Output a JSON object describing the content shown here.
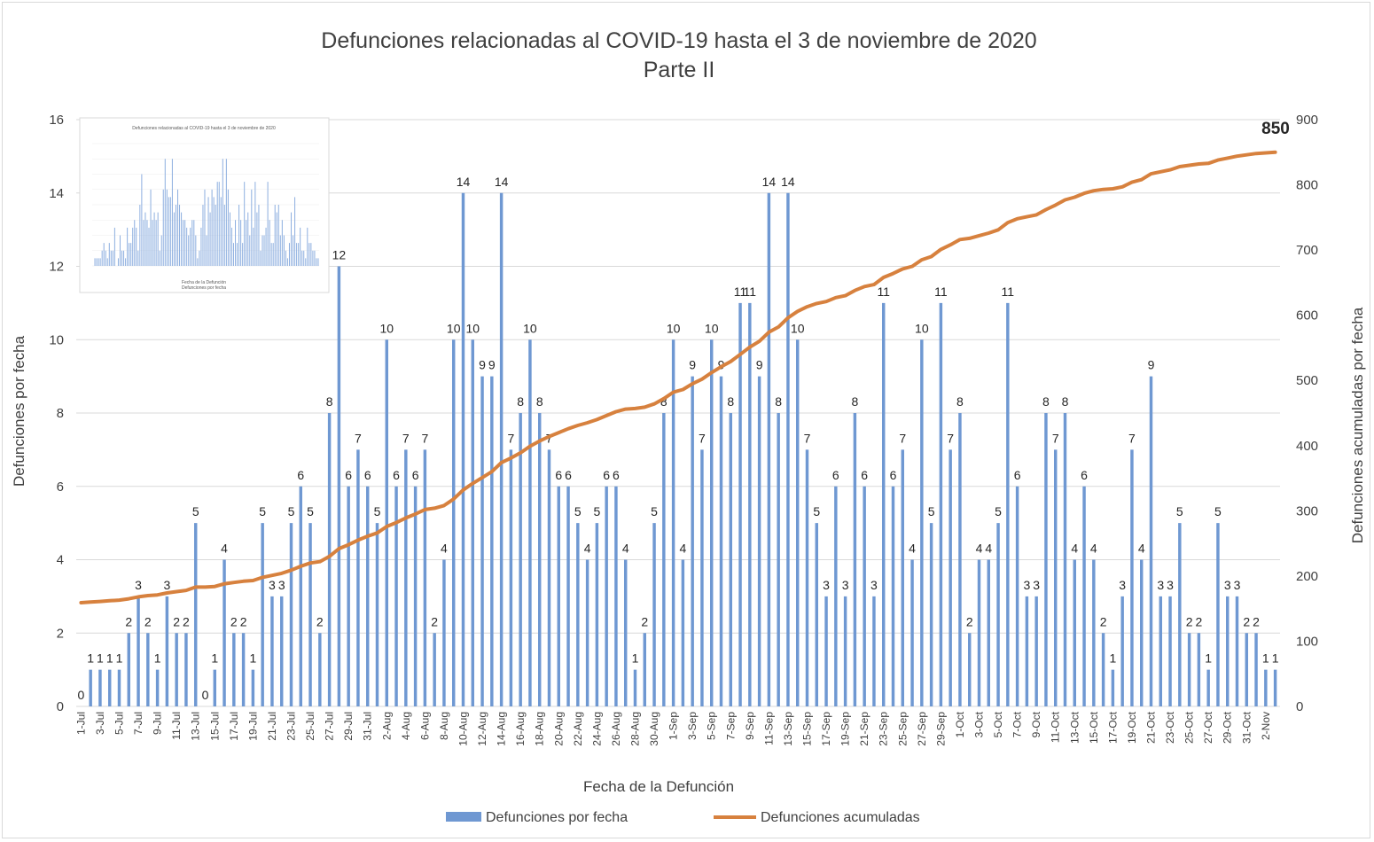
{
  "chart_data": {
    "type": "bar+line",
    "title": "Defunciones relacionadas al COVID-19 hasta el 3 de noviembre de 2020",
    "subtitle": "Parte II",
    "xlabel": "Fecha de la Defunción",
    "ylabel": "Defunciones por fecha",
    "y2label": "Defunciones acumuladas por fecha",
    "ylim": [
      0,
      16
    ],
    "y2lim": [
      0,
      900
    ],
    "yticks": [
      "0",
      "2",
      "4",
      "6",
      "8",
      "10",
      "12",
      "14",
      "16"
    ],
    "y2ticks": [
      "0",
      "100",
      "200",
      "300",
      "400",
      "500",
      "600",
      "700",
      "800",
      "900"
    ],
    "grid": true,
    "legend_position": "bottom",
    "colors": {
      "bars": "#6f98d2",
      "line": "#d7813e",
      "grid": "#d9d9d9",
      "text": "#404040"
    },
    "categories": [
      "1-Jul",
      "2-Jul",
      "3-Jul",
      "4-Jul",
      "5-Jul",
      "6-Jul",
      "7-Jul",
      "8-Jul",
      "9-Jul",
      "10-Jul",
      "11-Jul",
      "12-Jul",
      "13-Jul",
      "14-Jul",
      "15-Jul",
      "16-Jul",
      "17-Jul",
      "18-Jul",
      "19-Jul",
      "20-Jul",
      "21-Jul",
      "22-Jul",
      "23-Jul",
      "24-Jul",
      "25-Jul",
      "26-Jul",
      "27-Jul",
      "28-Jul",
      "29-Jul",
      "30-Jul",
      "31-Jul",
      "1-Aug",
      "2-Aug",
      "3-Aug",
      "4-Aug",
      "5-Aug",
      "6-Aug",
      "7-Aug",
      "8-Aug",
      "9-Aug",
      "10-Aug",
      "11-Aug",
      "12-Aug",
      "13-Aug",
      "14-Aug",
      "15-Aug",
      "16-Aug",
      "17-Aug",
      "18-Aug",
      "19-Aug",
      "20-Aug",
      "21-Aug",
      "22-Aug",
      "23-Aug",
      "24-Aug",
      "25-Aug",
      "26-Aug",
      "27-Aug",
      "28-Aug",
      "29-Aug",
      "30-Aug",
      "31-Aug",
      "1-Sep",
      "2-Sep",
      "3-Sep",
      "4-Sep",
      "5-Sep",
      "6-Sep",
      "7-Sep",
      "8-Sep",
      "9-Sep",
      "10-Sep",
      "11-Sep",
      "12-Sep",
      "13-Sep",
      "14-Sep",
      "15-Sep",
      "16-Sep",
      "17-Sep",
      "18-Sep",
      "19-Sep",
      "20-Sep",
      "21-Sep",
      "22-Sep",
      "23-Sep",
      "24-Sep",
      "25-Sep",
      "26-Sep",
      "27-Sep",
      "28-Sep",
      "29-Sep",
      "30-Sep",
      "1-Oct",
      "2-Oct",
      "3-Oct",
      "4-Oct",
      "5-Oct",
      "6-Oct",
      "7-Oct",
      "8-Oct",
      "9-Oct",
      "10-Oct",
      "11-Oct",
      "12-Oct",
      "13-Oct",
      "14-Oct",
      "15-Oct",
      "16-Oct",
      "17-Oct",
      "18-Oct",
      "19-Oct",
      "20-Oct",
      "21-Oct",
      "22-Oct",
      "23-Oct",
      "24-Oct",
      "25-Oct",
      "26-Oct",
      "27-Oct",
      "28-Oct",
      "29-Oct",
      "30-Oct",
      "31-Oct",
      "1-Nov",
      "2-Nov",
      "3-Nov"
    ],
    "series": [
      {
        "name": "Defunciones por fecha",
        "kind": "bar",
        "values": [
          0,
          1,
          1,
          1,
          1,
          2,
          3,
          2,
          1,
          3,
          2,
          2,
          5,
          0,
          1,
          4,
          2,
          2,
          1,
          5,
          3,
          3,
          5,
          6,
          5,
          2,
          8,
          12,
          6,
          7,
          6,
          5,
          10,
          6,
          7,
          6,
          7,
          2,
          4,
          10,
          14,
          10,
          9,
          9,
          14,
          7,
          8,
          10,
          8,
          7,
          6,
          6,
          5,
          4,
          5,
          6,
          6,
          4,
          1,
          2,
          5,
          8,
          10,
          4,
          9,
          7,
          10,
          9,
          8,
          11,
          11,
          9,
          14,
          8,
          14,
          10,
          7,
          5,
          3,
          6,
          3,
          8,
          6,
          3,
          11,
          6,
          7,
          4,
          10,
          5,
          11,
          7,
          8,
          2,
          4,
          4,
          5,
          11,
          6,
          3,
          3,
          8,
          7,
          8,
          4,
          6,
          4,
          2,
          1,
          3,
          7,
          4,
          9,
          3,
          3,
          5,
          2,
          2,
          1,
          5,
          3,
          3,
          2,
          2,
          1,
          1
        ]
      },
      {
        "name": "Defunciones acumuladas",
        "kind": "line",
        "start": 159,
        "final_label": "850"
      }
    ]
  },
  "legend": {
    "bars_label": "Defunciones por fecha",
    "line_label": "Defunciones acumuladas"
  },
  "inset": {
    "title": "Defunciones relacionadas al COVID-19 hasta el 3 de noviembre de 2020",
    "xlabel": "Fecha de la Defunción",
    "legend": "Defunciones por fecha"
  }
}
